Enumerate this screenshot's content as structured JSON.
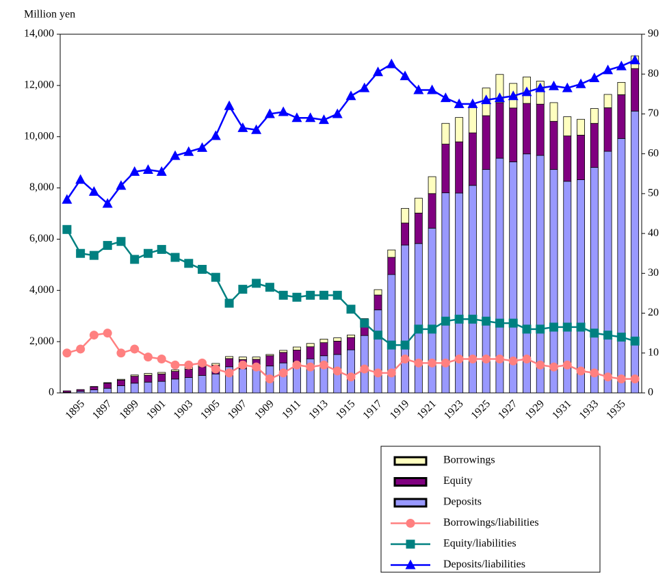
{
  "chart_data": {
    "type": "bar",
    "y_label": "Million yen",
    "categories": [
      null,
      "1895",
      null,
      "1897",
      null,
      "1899",
      null,
      "1901",
      null,
      "1903",
      null,
      "1905",
      null,
      "1907",
      null,
      "1909",
      null,
      "1911",
      null,
      "1913",
      null,
      "1915",
      null,
      "1917",
      null,
      "1919",
      null,
      "1921",
      null,
      "1923",
      null,
      "1925",
      null,
      "1927",
      null,
      "1929",
      null,
      "1931",
      null,
      "1933",
      null,
      "1935",
      null
    ],
    "ylim": [
      0,
      14000
    ],
    "yticks": [
      0,
      {
        "value": 2000,
        "label": "2,000"
      },
      {
        "value": 4000,
        "label": "4,000"
      },
      {
        "value": 6000,
        "label": "6,000"
      },
      {
        "value": 8000,
        "label": "8,000"
      },
      {
        "value": 10000,
        "label": "10,000"
      },
      {
        "value": 12000,
        "label": "12,000"
      },
      {
        "value": 14000,
        "label": "14,000"
      }
    ],
    "y2lim": [
      0,
      90
    ],
    "y2ticks": [
      0,
      10,
      20,
      30,
      40,
      50,
      60,
      70,
      80,
      90
    ],
    "legend": "bottom-right",
    "series": [
      {
        "name": "Borrowings",
        "type": "bar",
        "color": "#ffffc0",
        "values": [
          0,
          0,
          10,
          20,
          30,
          50,
          70,
          60,
          60,
          80,
          80,
          70,
          80,
          100,
          90,
          50,
          80,
          120,
          130,
          140,
          130,
          100,
          160,
          210,
          290,
          570,
          580,
          660,
          810,
          950,
          1050,
          1080,
          1100,
          960,
          1030,
          900,
          730,
          750,
          620,
          580,
          520,
          480,
          490
        ]
      },
      {
        "name": "Equity",
        "type": "bar",
        "color": "#800080",
        "values": [
          60,
          70,
          120,
          200,
          220,
          270,
          270,
          290,
          300,
          320,
          340,
          340,
          320,
          360,
          380,
          400,
          410,
          440,
          470,
          510,
          520,
          480,
          500,
          580,
          670,
          860,
          1190,
          1350,
          1900,
          2000,
          2050,
          2100,
          2170,
          2100,
          1970,
          2000,
          1880,
          1770,
          1740,
          1720,
          1700,
          1710,
          1660
        ]
      },
      {
        "name": "Deposits",
        "type": "bar",
        "color": "#9999ff",
        "values": [
          20,
          60,
          120,
          180,
          280,
          380,
          420,
          450,
          540,
          600,
          680,
          740,
          1020,
          940,
          930,
          1050,
          1170,
          1230,
          1330,
          1450,
          1500,
          1680,
          2240,
          3240,
          4620,
          5770,
          5830,
          6430,
          7810,
          7800,
          8100,
          8720,
          9160,
          9020,
          9330,
          9270,
          8720,
          8260,
          8320,
          8800,
          9430,
          9930,
          11000
        ]
      },
      {
        "name": "Borrowings/liabilities",
        "type": "line",
        "axis": "y2",
        "marker": "circle",
        "color": "#ff8080",
        "values": [
          10,
          11,
          14.5,
          15,
          10,
          11,
          9,
          8.5,
          7,
          7,
          7.5,
          6,
          5,
          7,
          6.5,
          3.5,
          5,
          7,
          6.5,
          7,
          5.5,
          4,
          6,
          5,
          5,
          8.5,
          7.5,
          7.5,
          7.5,
          8.5,
          8.5,
          8.5,
          8.5,
          8,
          8.5,
          7,
          6.5,
          7,
          5.5,
          5,
          4,
          3.5,
          3.5
        ]
      },
      {
        "name": "Equity/liabilities",
        "type": "line",
        "axis": "y2",
        "marker": "square",
        "color": "#008080",
        "values": [
          41,
          35,
          34.5,
          37,
          38,
          33.5,
          35,
          36,
          34,
          32.5,
          31,
          29,
          22.5,
          26,
          27.5,
          26.5,
          24.5,
          24,
          24.5,
          24.5,
          24.5,
          21,
          17.5,
          14.5,
          12,
          12,
          16,
          16,
          18,
          18.5,
          18.5,
          18,
          17.5,
          17.5,
          16,
          16,
          16.5,
          16.5,
          16.5,
          15,
          14.5,
          14,
          13
        ]
      },
      {
        "name": "Deposits/liabilities",
        "type": "line",
        "axis": "y2",
        "marker": "triangle",
        "color": "#0000ff",
        "values": [
          48.5,
          53.5,
          50.5,
          47.5,
          52,
          55.5,
          56,
          55.5,
          59.5,
          60.5,
          61.5,
          64.5,
          72,
          66.5,
          66,
          70,
          70.5,
          69,
          69,
          68.5,
          70,
          74.5,
          76.5,
          80.5,
          82.5,
          79.5,
          76,
          76,
          74,
          72.5,
          72.5,
          73.5,
          74,
          74.5,
          75.5,
          76.5,
          77,
          76.5,
          77.5,
          79,
          81,
          82,
          83.5
        ]
      }
    ]
  }
}
